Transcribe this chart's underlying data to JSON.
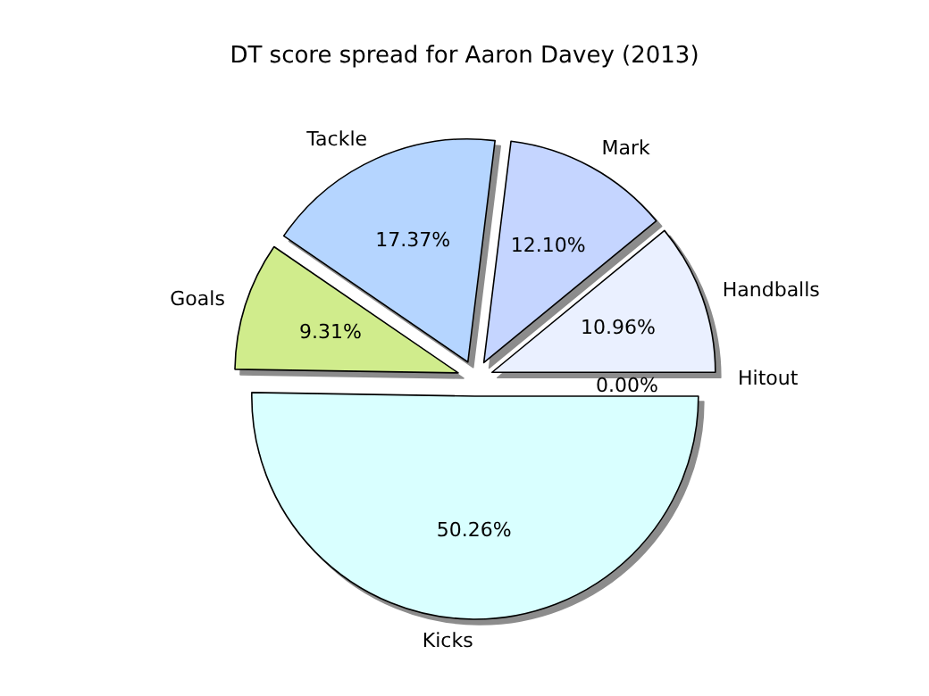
{
  "chart_data": {
    "type": "pie",
    "title": "DT score spread for Aaron Davey (2013)",
    "categories": [
      "Handballs",
      "Mark",
      "Tackle",
      "Goals",
      "Kicks",
      "Hitout"
    ],
    "values": [
      10.96,
      12.1,
      17.37,
      9.31,
      50.26,
      0.0
    ],
    "colors": [
      "#eaf0ff",
      "#c5d5ff",
      "#b5d5ff",
      "#d0ec8c",
      "#d9ffff",
      "#e0e0e0"
    ],
    "value_labels": [
      "10.96%",
      "12.10%",
      "17.37%",
      "9.31%",
      "50.26%",
      "0.00%"
    ],
    "legend": false
  }
}
